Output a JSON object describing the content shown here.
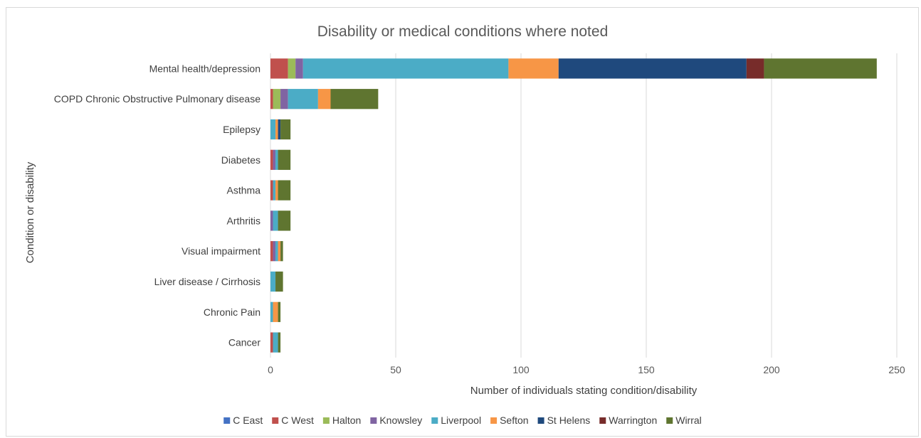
{
  "chart_data": {
    "type": "bar",
    "orientation": "horizontal",
    "stacked": true,
    "title": "Disability or medical conditions where noted",
    "xlabel": "Number of individuals stating condition/disability",
    "ylabel": "Condition or disability",
    "xlim": [
      0,
      250
    ],
    "xticks": [
      0,
      50,
      100,
      150,
      200,
      250
    ],
    "grid": "vertical",
    "legend_position": "bottom",
    "categories": [
      "Mental health/depression",
      "COPD Chronic Obstructive Pulmonary disease",
      "Epilepsy",
      "Diabetes",
      "Asthma",
      "Arthritis",
      "Visual impairment",
      "Liver disease / Cirrhosis",
      "Chronic Pain",
      "Cancer"
    ],
    "series": [
      {
        "name": "C East",
        "color": "#4472C4",
        "values": [
          0,
          0,
          0,
          0,
          0,
          0,
          0,
          0,
          0,
          0
        ]
      },
      {
        "name": "C West",
        "color": "#C0504D",
        "values": [
          7,
          1,
          0,
          1,
          1,
          0,
          1,
          0,
          0,
          1
        ]
      },
      {
        "name": "Halton",
        "color": "#9BBB59",
        "values": [
          3,
          3,
          0,
          0,
          0,
          0,
          0,
          0,
          0,
          0
        ]
      },
      {
        "name": "Knowsley",
        "color": "#8064A2",
        "values": [
          3,
          3,
          0,
          1,
          0,
          1,
          1,
          0,
          0,
          0
        ]
      },
      {
        "name": "Liverpool",
        "color": "#4BACC6",
        "values": [
          82,
          12,
          2,
          1,
          1,
          2,
          1,
          2,
          1,
          2
        ]
      },
      {
        "name": "Sefton",
        "color": "#F79646",
        "values": [
          20,
          5,
          1,
          0,
          1,
          0,
          1,
          0,
          2,
          0
        ]
      },
      {
        "name": "St Helens",
        "color": "#1F497D",
        "values": [
          75,
          0,
          1,
          0,
          0,
          0,
          0,
          0,
          0,
          0
        ]
      },
      {
        "name": "Warrington",
        "color": "#772C2A",
        "values": [
          7,
          0,
          0,
          0,
          0,
          0,
          0,
          0,
          0,
          0
        ]
      },
      {
        "name": "Wirral",
        "color": "#5F7530",
        "values": [
          45,
          19,
          4,
          5,
          5,
          5,
          1,
          3,
          1,
          1
        ]
      }
    ]
  }
}
